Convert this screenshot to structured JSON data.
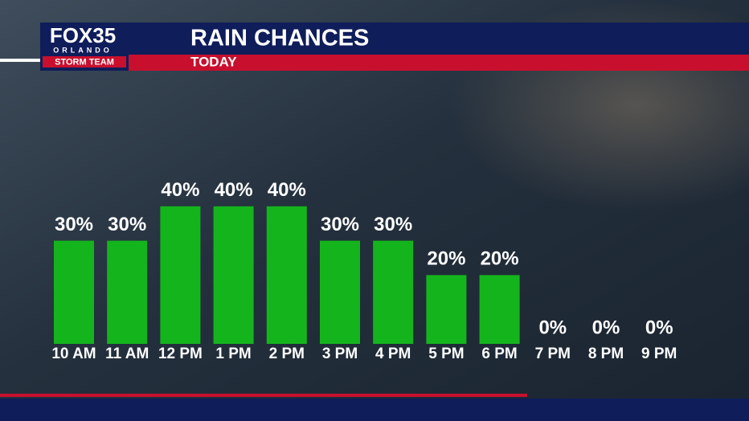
{
  "logo": {
    "brand": "FOX35",
    "city": "ORLANDO",
    "team": "STORM TEAM"
  },
  "chart_data": {
    "type": "bar",
    "title": "RAIN CHANCES",
    "subtitle": "TODAY",
    "categories": [
      "10 AM",
      "11 AM",
      "12 PM",
      "1 PM",
      "2 PM",
      "3 PM",
      "4 PM",
      "5 PM",
      "6 PM",
      "7 PM",
      "8 PM",
      "9 PM"
    ],
    "values": [
      30,
      30,
      40,
      40,
      40,
      30,
      30,
      20,
      20,
      0,
      0,
      0
    ],
    "value_labels": [
      "30%",
      "30%",
      "40%",
      "40%",
      "40%",
      "30%",
      "30%",
      "20%",
      "20%",
      "0%",
      "0%",
      "0%"
    ],
    "color": "#14b51c"
  }
}
